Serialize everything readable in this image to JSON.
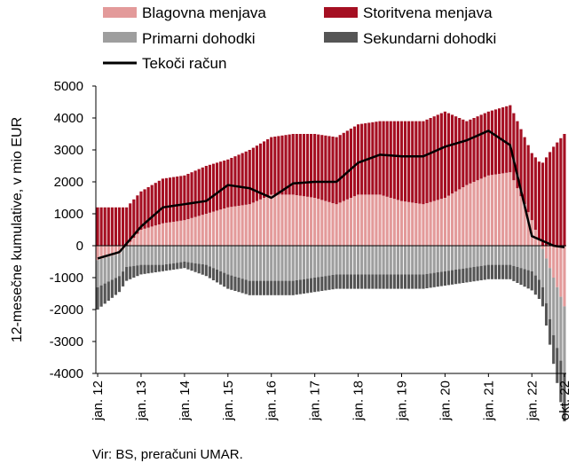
{
  "source_note": "Vir: BS, preračuni UMAR.",
  "chart_data": {
    "type": "bar",
    "subtype": "stacked-bar-with-line",
    "ylabel": "12-mesečne kumulative, v mio EUR",
    "xlabel": "",
    "ylim": [
      -4000,
      5000
    ],
    "yticks": [
      -4000,
      -3000,
      -2000,
      -1000,
      0,
      1000,
      2000,
      3000,
      4000,
      5000
    ],
    "x_tick_labels": [
      "jan. 12",
      "jan. 13",
      "jan. 14",
      "jan. 15",
      "jan. 16",
      "jan. 17",
      "jan. 18",
      "jan. 19",
      "jan. 20",
      "jan. 21",
      "jan. 22",
      "okt. 22"
    ],
    "x_tick_index": [
      0,
      12,
      24,
      36,
      48,
      60,
      72,
      84,
      96,
      108,
      120,
      129
    ],
    "legend_position": "top",
    "colors": {
      "goods": "#e39a9a",
      "services": "#a50f22",
      "primary": "#9e9e9e",
      "secondary": "#555555",
      "current": "#000000"
    },
    "anchor_months": [
      0,
      6,
      12,
      18,
      24,
      30,
      36,
      42,
      48,
      54,
      60,
      66,
      72,
      78,
      84,
      90,
      96,
      102,
      108,
      114,
      120,
      123,
      126,
      129
    ],
    "series": [
      {
        "name": "Blagovna menjava",
        "key": "goods",
        "kind": "bar",
        "values": [
          -450,
          -250,
          500,
          700,
          800,
          1000,
          1200,
          1300,
          1600,
          1600,
          1500,
          1300,
          1600,
          1600,
          1400,
          1300,
          1500,
          1900,
          2200,
          2300,
          800,
          -100,
          -1000,
          -1900
        ]
      },
      {
        "name": "Storitvena menjava",
        "key": "services",
        "kind": "bar",
        "values": [
          1200,
          1200,
          1200,
          1400,
          1400,
          1500,
          1500,
          1700,
          1800,
          1900,
          2000,
          2100,
          2200,
          2300,
          2500,
          2600,
          2700,
          2000,
          2000,
          2100,
          2100,
          2600,
          3100,
          3500
        ]
      },
      {
        "name": "Primarni dohodki",
        "key": "primary",
        "kind": "bar",
        "values": [
          -850,
          -700,
          -600,
          -600,
          -500,
          -600,
          -900,
          -1100,
          -1100,
          -1100,
          -1000,
          -900,
          -900,
          -900,
          -900,
          -900,
          -800,
          -700,
          -600,
          -600,
          -800,
          -1200,
          -1800,
          -2100
        ]
      },
      {
        "name": "Sekundarni dohodki",
        "key": "secondary",
        "kind": "bar",
        "values": [
          -700,
          -500,
          -300,
          -200,
          -200,
          -350,
          -450,
          -450,
          -450,
          -450,
          -450,
          -450,
          -450,
          -450,
          -450,
          -450,
          -450,
          -450,
          -450,
          -450,
          -600,
          -600,
          -900,
          -1500
        ]
      },
      {
        "name": "Tekoči račun",
        "key": "current",
        "kind": "line",
        "values": [
          -400,
          -200,
          600,
          1200,
          1300,
          1400,
          1900,
          1800,
          1500,
          1950,
          2000,
          2000,
          2600,
          2850,
          2800,
          2800,
          3100,
          3300,
          3600,
          3150,
          300,
          150,
          0,
          -50
        ]
      }
    ]
  }
}
